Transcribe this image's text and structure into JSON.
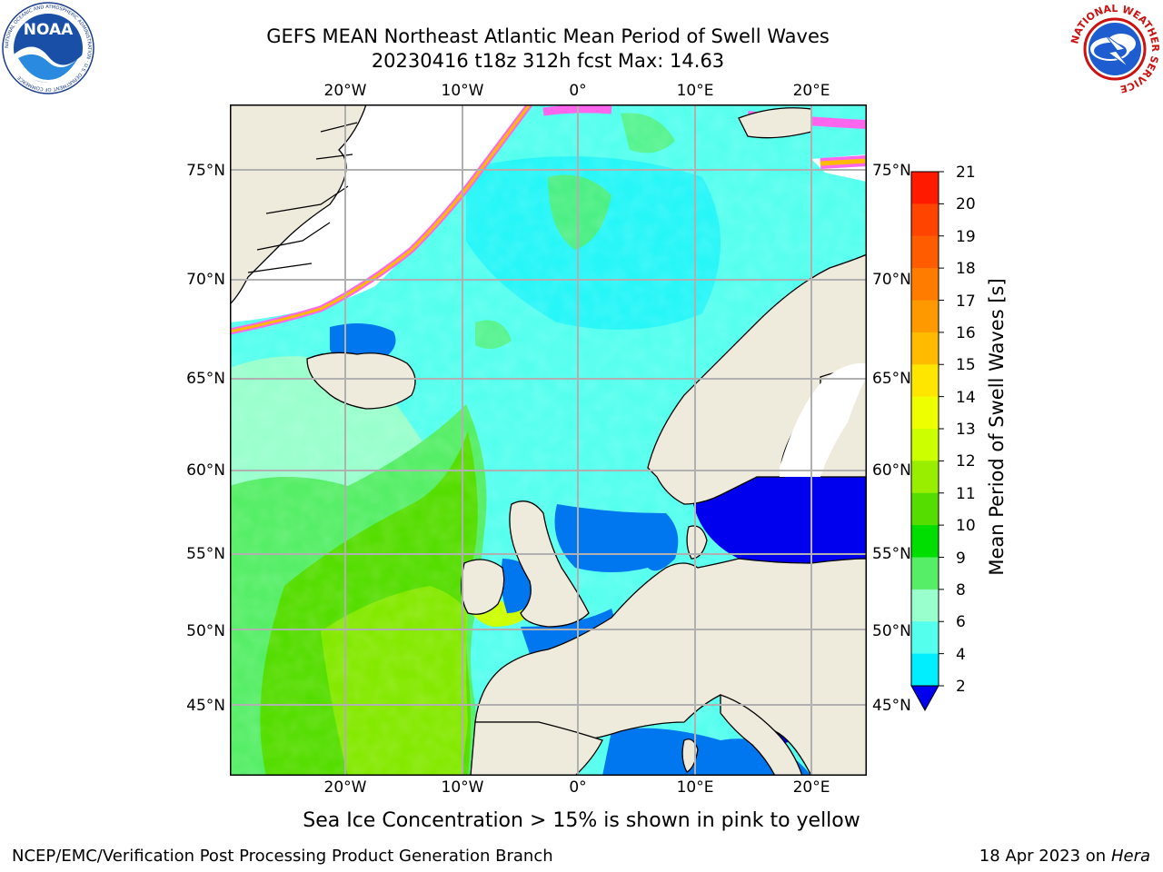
{
  "header": {
    "title_line1": "GEFS MEAN Northeast Atlantic Mean Period of Swell Waves",
    "title_line2": "20230416 t18z 312h fcst   Max: 14.63"
  },
  "logos": {
    "left": {
      "name": "NOAA",
      "text": "NOAA",
      "ring_text": "NATIONAL OCEANIC AND ATMOSPHERIC ADMINISTRATION · U.S. DEPARTMENT OF COMMERCE"
    },
    "right": {
      "name": "National Weather Service",
      "ring_text": "NATIONAL WEATHER SERVICE"
    }
  },
  "map": {
    "lon_ticks_top": [
      "20°W",
      "10°W",
      "0°",
      "10°E",
      "20°E"
    ],
    "lon_ticks_bottom": [
      "20°W",
      "10°W",
      "0°",
      "10°E",
      "20°E"
    ],
    "lat_ticks_left": [
      "75°N",
      "70°N",
      "65°N",
      "60°N",
      "55°N",
      "50°N",
      "45°N"
    ],
    "lat_ticks_right": [
      "75°N",
      "70°N",
      "65°N",
      "60°N",
      "55°N",
      "50°N",
      "45°N"
    ],
    "land_color": "#efebdc",
    "ice_color": "#ffffff",
    "grid_color": "#b0b0b0"
  },
  "colorbar": {
    "title": "Mean Period of Swell Waves [s]",
    "labels": [
      "21",
      "20",
      "19",
      "18",
      "17",
      "16",
      "15",
      "14",
      "13",
      "12",
      "11",
      "10",
      "9",
      "8",
      "6",
      "4",
      "2"
    ],
    "colors_top_to_bottom": [
      "#ff1a00",
      "#ff4400",
      "#ff5c00",
      "#ff7c00",
      "#ff9900",
      "#ffbb00",
      "#ffe600",
      "#eeff00",
      "#ccff00",
      "#99ee00",
      "#55dd00",
      "#00dd00",
      "#55ee66",
      "#99ffcc",
      "#55ffee",
      "#00eeff",
      "#0077ee"
    ],
    "under_color": "#0000ee"
  },
  "caption": "Sea Ice Concentration > 15% is shown in pink to yellow",
  "footer": {
    "left": "NCEP/EMC/Verification Post Processing Product Generation Branch",
    "right_date": "18 Apr 2023 on ",
    "right_host": "Hera"
  }
}
